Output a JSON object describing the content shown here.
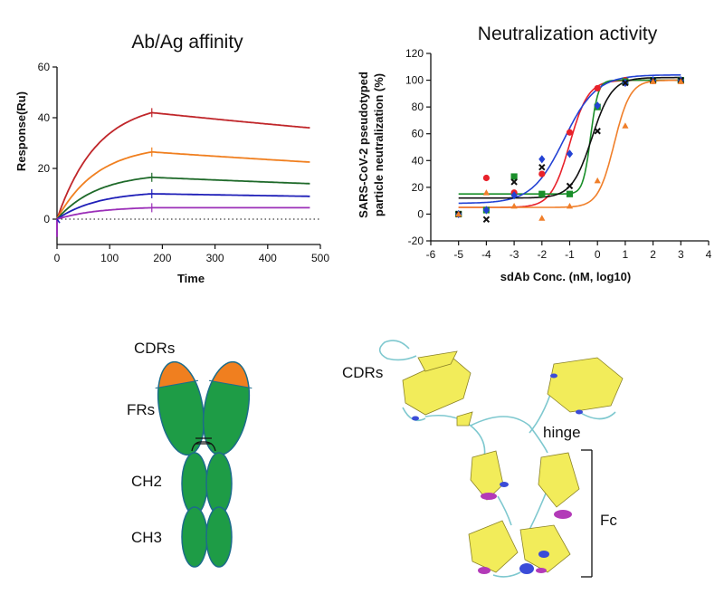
{
  "chart_data": [
    {
      "type": "line",
      "title": "Ab/Ag affinity",
      "xlabel": "Time",
      "ylabel": "Response(Ru)",
      "xlim": [
        0,
        500
      ],
      "ylim": [
        -10,
        60
      ],
      "xticks": [
        0,
        100,
        200,
        300,
        400,
        500
      ],
      "yticks": [
        0,
        20,
        40,
        60
      ],
      "association_end": 180,
      "series": [
        {
          "color": "#c0262a",
          "values": [
            {
              "x": 0,
              "y": 0
            },
            {
              "x": 180,
              "y": 42
            },
            {
              "x": 480,
              "y": 36
            }
          ]
        },
        {
          "color": "#f07f1f",
          "values": [
            {
              "x": 0,
              "y": 0
            },
            {
              "x": 180,
              "y": 26.5
            },
            {
              "x": 480,
              "y": 22.5
            }
          ]
        },
        {
          "color": "#1f6a2a",
          "values": [
            {
              "x": 0,
              "y": 0
            },
            {
              "x": 180,
              "y": 16.5
            },
            {
              "x": 480,
              "y": 14
            }
          ]
        },
        {
          "color": "#1f1fb8",
          "values": [
            {
              "x": 0,
              "y": 0
            },
            {
              "x": 180,
              "y": 10
            },
            {
              "x": 480,
              "y": 9
            }
          ]
        },
        {
          "color": "#9b2fb8",
          "values": [
            {
              "x": 0,
              "y": 0
            },
            {
              "x": 180,
              "y": 4.5
            },
            {
              "x": 480,
              "y": 4.5
            }
          ]
        }
      ]
    },
    {
      "type": "scatter",
      "title": "Neutralization activity",
      "xlabel": "sdAb Conc. (nM, log10)",
      "ylabel": "SARS-CoV-2 pseudotyped particle neutralization (%)",
      "ylabel_lines": [
        "SARS-CoV-2 pseudotyped",
        "particle neutralization (%)"
      ],
      "xlim": [
        -6,
        4
      ],
      "ylim": [
        -20,
        120
      ],
      "xticks": [
        -6,
        -5,
        -4,
        -3,
        -2,
        -1,
        0,
        1,
        2,
        3,
        4
      ],
      "yticks": [
        -20,
        0,
        20,
        40,
        60,
        80,
        100,
        120
      ],
      "series": [
        {
          "color": "#e8222b",
          "marker": "circle",
          "bottom": 5,
          "top": 100,
          "ec50": -1.0,
          "hill": 1.3,
          "points": [
            {
              "x": -5,
              "y": 0
            },
            {
              "x": -4,
              "y": 27
            },
            {
              "x": -3,
              "y": 16
            },
            {
              "x": -2,
              "y": 30
            },
            {
              "x": -1,
              "y": 61
            },
            {
              "x": 0,
              "y": 94
            },
            {
              "x": 1,
              "y": 100
            },
            {
              "x": 2,
              "y": 100
            },
            {
              "x": 3,
              "y": 100
            }
          ]
        },
        {
          "color": "#1a8f2a",
          "marker": "square",
          "bottom": 15,
          "top": 100,
          "ec50": -0.25,
          "hill": 3.2,
          "points": [
            {
              "x": -5,
              "y": 0
            },
            {
              "x": -4,
              "y": 3
            },
            {
              "x": -3,
              "y": 28
            },
            {
              "x": -2,
              "y": 15
            },
            {
              "x": -1,
              "y": 15
            },
            {
              "x": 0,
              "y": 80
            },
            {
              "x": 1,
              "y": 99
            },
            {
              "x": 2,
              "y": 100
            },
            {
              "x": 3,
              "y": 100
            }
          ]
        },
        {
          "color": "#2342d4",
          "marker": "diamond",
          "bottom": 8,
          "top": 104,
          "ec50": -1.2,
          "hill": 0.75,
          "points": [
            {
              "x": -5,
              "y": 0
            },
            {
              "x": -4,
              "y": 3
            },
            {
              "x": -3,
              "y": 14
            },
            {
              "x": -2,
              "y": 41
            },
            {
              "x": -1,
              "y": 45
            },
            {
              "x": 0,
              "y": 81
            },
            {
              "x": 1,
              "y": 98
            },
            {
              "x": 2,
              "y": 100
            },
            {
              "x": 3,
              "y": 100
            }
          ]
        },
        {
          "color": "#111111",
          "marker": "cross",
          "bottom": 12,
          "top": 102,
          "ec50": -0.2,
          "hill": 1.2,
          "points": [
            {
              "x": -5,
              "y": 0
            },
            {
              "x": -4,
              "y": -4
            },
            {
              "x": -3,
              "y": 24
            },
            {
              "x": -2,
              "y": 35
            },
            {
              "x": -1,
              "y": 21
            },
            {
              "x": 0,
              "y": 62
            },
            {
              "x": 1,
              "y": 98
            },
            {
              "x": 2,
              "y": 100
            },
            {
              "x": 3,
              "y": 100
            }
          ]
        },
        {
          "color": "#f07f2a",
          "marker": "triangle",
          "bottom": 5,
          "top": 100,
          "ec50": 0.6,
          "hill": 1.5,
          "points": [
            {
              "x": -5,
              "y": 0
            },
            {
              "x": -4,
              "y": 16
            },
            {
              "x": -3,
              "y": 6
            },
            {
              "x": -2,
              "y": -3
            },
            {
              "x": -1,
              "y": 6
            },
            {
              "x": 0,
              "y": 25
            },
            {
              "x": 1,
              "y": 66
            },
            {
              "x": 2,
              "y": 99
            },
            {
              "x": 3,
              "y": 99
            }
          ]
        }
      ]
    }
  ],
  "diagram": {
    "labels": {
      "cdrs": "CDRs",
      "frs": "FRs",
      "ch2": "CH2",
      "ch3": "CH3"
    },
    "colors": {
      "cdr": "#f07f1f",
      "domain": "#1e9c46",
      "outline": "#1c6c8a"
    }
  },
  "structure": {
    "labels": {
      "cdrs": "CDRs",
      "hinge": "hinge",
      "fc": "Fc"
    },
    "colors": {
      "sheet": "#f2ec5a",
      "helix_magenta": "#b33ab8",
      "helix_blue": "#3b4cd8",
      "coil": "#7ec8cf"
    }
  }
}
